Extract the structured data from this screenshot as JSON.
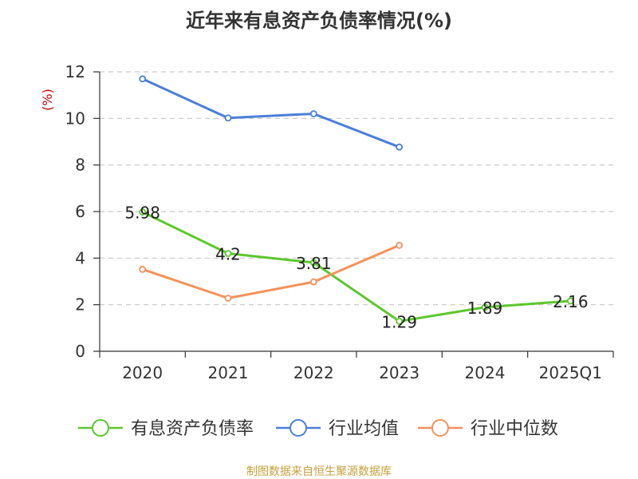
{
  "chart_data": {
    "type": "line",
    "title": "近年来有息资产负债率情况(%)",
    "ylabel": "(%)",
    "xlabel": "",
    "categories": [
      "2020",
      "2021",
      "2022",
      "2023",
      "2024",
      "2025Q1"
    ],
    "ylim": [
      0,
      12
    ],
    "yticks": [
      0,
      2,
      4,
      6,
      8,
      10,
      12
    ],
    "grid": true,
    "legend_position": "bottom",
    "series": [
      {
        "name": "有息资产负债率",
        "color": "#5cc72c",
        "values": [
          5.98,
          4.2,
          3.81,
          1.29,
          1.89,
          2.16
        ],
        "labels": [
          "5.98",
          "4.2",
          "3.81",
          "1.29",
          "1.89",
          "2.16"
        ]
      },
      {
        "name": "行业均值",
        "color": "#4b7fd9",
        "values": [
          11.7,
          10.02,
          10.2,
          8.77,
          null,
          null
        ]
      },
      {
        "name": "行业中位数",
        "color": "#f5915a",
        "values": [
          3.52,
          2.28,
          2.98,
          4.55,
          null,
          null
        ]
      }
    ],
    "source": "制图数据来自恒生聚源数据库"
  }
}
